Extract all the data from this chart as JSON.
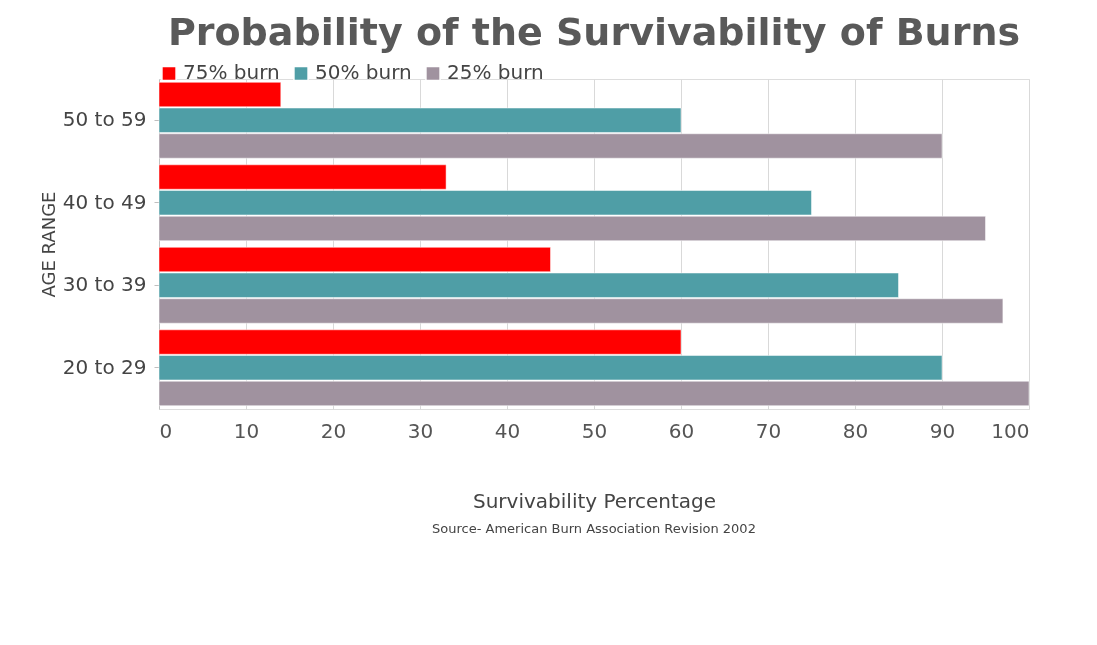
{
  "chart_data": {
    "type": "bar",
    "orientation": "horizontal",
    "title": "Probability of the Survivability of Burns",
    "xlabel": "Survivability Percentage",
    "ylabel": "AGE RANGE",
    "categories": [
      "50 to 59",
      "40 to 49",
      "30 to 39",
      "20 to 29"
    ],
    "series": [
      {
        "name": "75% burn",
        "color": "#ff0000",
        "values": [
          14,
          33,
          45,
          60
        ]
      },
      {
        "name": "50% burn",
        "color": "#4f9ea6",
        "values": [
          60,
          75,
          85,
          90
        ]
      },
      {
        "name": "25% burn",
        "color": "#a0929f",
        "values": [
          90,
          95,
          97,
          100
        ]
      }
    ],
    "xlim": [
      0,
      100
    ],
    "xticks": [
      0,
      10,
      20,
      30,
      40,
      50,
      60,
      70,
      80,
      90,
      100
    ],
    "grid": "x",
    "legend": "top",
    "annotations": [
      "Source- American Burn Association Revision 2002"
    ]
  }
}
